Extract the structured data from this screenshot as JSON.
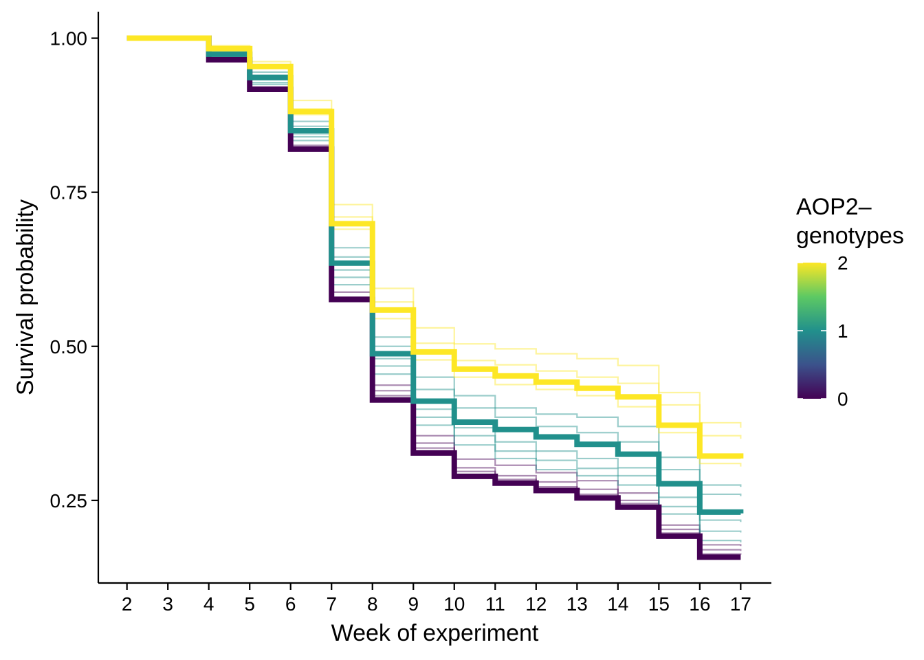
{
  "chart_data": {
    "type": "line",
    "subtype": "step",
    "title": "",
    "xlabel": "Week of experiment",
    "ylabel": "Survival probability",
    "xlim": [
      1.3,
      17.75
    ],
    "ylim": [
      0.116,
      1.043
    ],
    "x_ticks": [
      "2",
      "3",
      "4",
      "5",
      "6",
      "7",
      "8",
      "9",
      "10",
      "11",
      "12",
      "13",
      "14",
      "15",
      "16",
      "17"
    ],
    "y_ticks": [
      "0.25",
      "0.50",
      "0.75",
      "1.00"
    ],
    "x": [
      2,
      3,
      4,
      5,
      6,
      7,
      8,
      9,
      10,
      11,
      12,
      13,
      14,
      15,
      16,
      17
    ],
    "grid": false,
    "legend": {
      "title": "AOP2–\ngenotypes",
      "placement": "right",
      "type": "colorbar",
      "range": [
        0,
        2
      ],
      "labels": [
        "2",
        "1",
        "0"
      ],
      "colors": [
        "#440154",
        "#3b528b",
        "#21908c",
        "#5dc963",
        "#fde725"
      ]
    },
    "series": [
      {
        "genotype": 0,
        "color": "#440154",
        "emphasis": "bold",
        "values": [
          1.0,
          1.0,
          0.965,
          0.917,
          0.82,
          0.576,
          0.413,
          0.327,
          0.289,
          0.278,
          0.266,
          0.254,
          0.239,
          0.192,
          0.158,
          0.158
        ]
      },
      {
        "genotype": 1,
        "color": "#21908c",
        "emphasis": "bold",
        "values": [
          1.0,
          1.0,
          0.974,
          0.936,
          0.85,
          0.635,
          0.488,
          0.411,
          0.377,
          0.365,
          0.353,
          0.341,
          0.325,
          0.277,
          0.231,
          0.229
        ]
      },
      {
        "genotype": 2,
        "color": "#fde725",
        "emphasis": "bold",
        "values": [
          1.0,
          1.0,
          0.983,
          0.954,
          0.881,
          0.699,
          0.559,
          0.491,
          0.463,
          0.452,
          0.442,
          0.432,
          0.418,
          0.372,
          0.322,
          0.318
        ]
      },
      {
        "genotype": 2,
        "color": "#fde725",
        "emphasis": "thin",
        "values": [
          1.0,
          1.0,
          0.988,
          0.962,
          0.899,
          0.73,
          0.594,
          0.53,
          0.504,
          0.496,
          0.488,
          0.48,
          0.469,
          0.425,
          0.376,
          0.368
        ]
      },
      {
        "genotype": 2,
        "color": "#fde725",
        "emphasis": "thin",
        "values": [
          1.0,
          1.0,
          0.984,
          0.955,
          0.885,
          0.71,
          0.572,
          0.505,
          0.477,
          0.47,
          0.46,
          0.45,
          0.44,
          0.405,
          0.355,
          0.35
        ]
      },
      {
        "genotype": 2,
        "color": "#fde725",
        "emphasis": "thin",
        "values": [
          1.0,
          1.0,
          0.982,
          0.952,
          0.876,
          0.69,
          0.545,
          0.478,
          0.45,
          0.438,
          0.43,
          0.42,
          0.402,
          0.36,
          0.31,
          0.305
        ]
      },
      {
        "genotype": 1,
        "color": "#21908c",
        "emphasis": "thin",
        "values": [
          1.0,
          1.0,
          0.978,
          0.945,
          0.865,
          0.66,
          0.515,
          0.45,
          0.42,
          0.4,
          0.39,
          0.385,
          0.37,
          0.32,
          0.275,
          0.272
        ]
      },
      {
        "genotype": 1,
        "color": "#21908c",
        "emphasis": "thin",
        "values": [
          1.0,
          1.0,
          0.976,
          0.94,
          0.857,
          0.645,
          0.5,
          0.43,
          0.4,
          0.385,
          0.37,
          0.36,
          0.345,
          0.3,
          0.26,
          0.257
        ]
      },
      {
        "genotype": 1,
        "color": "#21908c",
        "emphasis": "thin",
        "values": [
          1.0,
          1.0,
          0.974,
          0.934,
          0.845,
          0.624,
          0.48,
          0.398,
          0.368,
          0.345,
          0.33,
          0.318,
          0.303,
          0.255,
          0.218,
          0.215
        ]
      },
      {
        "genotype": 1,
        "color": "#21908c",
        "emphasis": "thin",
        "values": [
          1.0,
          1.0,
          0.972,
          0.928,
          0.84,
          0.612,
          0.468,
          0.385,
          0.355,
          0.33,
          0.315,
          0.302,
          0.29,
          0.24,
          0.2,
          0.198
        ]
      },
      {
        "genotype": 1,
        "color": "#21908c",
        "emphasis": "thin",
        "values": [
          1.0,
          1.0,
          0.97,
          0.925,
          0.834,
          0.6,
          0.455,
          0.372,
          0.34,
          0.318,
          0.3,
          0.29,
          0.275,
          0.228,
          0.185,
          0.182
        ]
      },
      {
        "genotype": 0,
        "color": "#440154",
        "emphasis": "thin",
        "values": [
          1.0,
          1.0,
          0.967,
          0.921,
          0.826,
          0.588,
          0.437,
          0.355,
          0.317,
          0.307,
          0.295,
          0.282,
          0.262,
          0.21,
          0.178,
          0.176
        ]
      },
      {
        "genotype": 0,
        "color": "#440154",
        "emphasis": "thin",
        "values": [
          1.0,
          1.0,
          0.966,
          0.919,
          0.823,
          0.58,
          0.428,
          0.343,
          0.303,
          0.29,
          0.28,
          0.268,
          0.25,
          0.203,
          0.17,
          0.168
        ]
      },
      {
        "genotype": 0,
        "color": "#440154",
        "emphasis": "thin",
        "values": [
          1.0,
          1.0,
          0.966,
          0.918,
          0.821,
          0.577,
          0.42,
          0.335,
          0.297,
          0.284,
          0.272,
          0.26,
          0.245,
          0.197,
          0.163,
          0.162
        ]
      }
    ]
  }
}
